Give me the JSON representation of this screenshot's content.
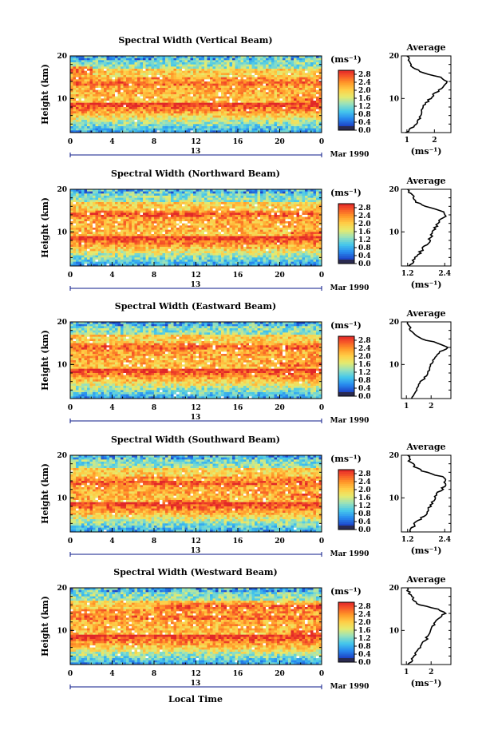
{
  "figure": {
    "xlabel": "Local Time",
    "unit_label": "(ms⁻¹)",
    "date_day": "13",
    "date_label": "Mar 1990"
  },
  "chart_data": [
    {
      "type": "heatmap",
      "title": "Spectral Width (Vertical Beam)",
      "xlabel": "Local Time",
      "ylabel": "Height (km)",
      "x_ticks": [
        "0",
        "4",
        "8",
        "12",
        "16",
        "20",
        "0"
      ],
      "xlim": [
        0,
        24
      ],
      "y_ticks": [
        "20",
        "10"
      ],
      "ylim": [
        2,
        20
      ],
      "colorbar": {
        "label": "(ms⁻¹)",
        "ticks": [
          "0.0",
          "0.4",
          "0.8",
          "1.2",
          "1.6",
          "2.0",
          "2.4",
          "2.8"
        ],
        "range": [
          0.0,
          3.0
        ]
      },
      "bands": [
        {
          "height_km": 16.5,
          "time_range": [
            0,
            2
          ],
          "value": 2.8
        },
        {
          "height_km": 13.5,
          "time_range": [
            0,
            24
          ],
          "value": 2.7
        },
        {
          "height_km": 9.5,
          "time_range": [
            21,
            24
          ],
          "value": 2.8
        },
        {
          "height_km": 8.0,
          "time_range": [
            8,
            14
          ],
          "value": 2.6
        },
        {
          "height_km": 11.5,
          "time_range": [
            8,
            18
          ],
          "value": 2.1
        }
      ],
      "profile": {
        "title": "Average",
        "xlabel": "(ms⁻¹)",
        "x_ticks": [
          "1",
          "2"
        ],
        "xlim": [
          0.8,
          2.6
        ],
        "height_km": [
          2,
          4,
          6,
          8,
          10,
          11,
          12,
          13,
          14,
          15,
          16,
          17,
          18,
          19,
          20
        ],
        "values": [
          1.0,
          1.3,
          1.5,
          1.6,
          1.85,
          2.0,
          2.2,
          2.35,
          2.45,
          2.2,
          1.6,
          1.3,
          1.15,
          1.05,
          1.0
        ]
      }
    },
    {
      "type": "heatmap",
      "title": "Spectral Width (Northward Beam)",
      "xlabel": "Local Time",
      "ylabel": "Height (km)",
      "x_ticks": [
        "0",
        "4",
        "8",
        "12",
        "16",
        "20",
        "0"
      ],
      "xlim": [
        0,
        24
      ],
      "y_ticks": [
        "20",
        "10"
      ],
      "ylim": [
        2,
        20
      ],
      "colorbar": {
        "label": "(ms⁻¹)",
        "ticks": [
          "0.0",
          "0.4",
          "0.8",
          "1.2",
          "1.6",
          "2.0",
          "2.4",
          "2.8"
        ],
        "range": [
          0.0,
          3.0
        ]
      },
      "bands": [
        {
          "height_km": 14.0,
          "time_range": [
            0,
            24
          ],
          "value": 2.8
        },
        {
          "height_km": 9.5,
          "time_range": [
            21,
            24
          ],
          "value": 2.8
        },
        {
          "height_km": 8.0,
          "time_range": [
            8,
            14
          ],
          "value": 2.7
        },
        {
          "height_km": 11.5,
          "time_range": [
            6,
            20
          ],
          "value": 2.2
        }
      ],
      "profile": {
        "title": "Average",
        "xlabel": "(ms⁻¹)",
        "x_ticks": [
          "1.2",
          "2.4"
        ],
        "xlim": [
          1.0,
          2.6
        ],
        "height_km": [
          2,
          4,
          6,
          8,
          10,
          11,
          12,
          13,
          14,
          15,
          16,
          17,
          18,
          19,
          20
        ],
        "values": [
          1.25,
          1.45,
          1.7,
          1.9,
          2.05,
          2.1,
          2.2,
          2.3,
          2.45,
          2.25,
          1.75,
          1.5,
          1.4,
          1.3,
          1.2
        ]
      }
    },
    {
      "type": "heatmap",
      "title": "Spectral Width (Eastward Beam)",
      "xlabel": "Local Time",
      "ylabel": "Height (km)",
      "x_ticks": [
        "0",
        "4",
        "8",
        "12",
        "16",
        "20",
        "0"
      ],
      "xlim": [
        0,
        24
      ],
      "y_ticks": [
        "20",
        "10"
      ],
      "ylim": [
        2,
        20
      ],
      "colorbar": {
        "label": "(ms⁻¹)",
        "ticks": [
          "0.0",
          "0.4",
          "0.8",
          "1.2",
          "1.6",
          "2.0",
          "2.4",
          "2.8"
        ],
        "range": [
          0.0,
          3.0
        ]
      },
      "bands": [
        {
          "height_km": 14.0,
          "time_range": [
            0,
            24
          ],
          "value": 2.8
        },
        {
          "height_km": 10.0,
          "time_range": [
            20,
            24
          ],
          "value": 2.7
        },
        {
          "height_km": 8.5,
          "time_range": [
            7,
            15
          ],
          "value": 2.3
        }
      ],
      "profile": {
        "title": "Average",
        "xlabel": "",
        "x_ticks": [
          "1",
          "2"
        ],
        "xlim": [
          0.8,
          2.8
        ],
        "height_km": [
          2,
          4,
          6,
          8,
          10,
          11,
          12,
          13,
          14,
          15,
          16,
          17,
          18,
          19,
          20
        ],
        "values": [
          1.2,
          1.4,
          1.6,
          1.9,
          2.0,
          2.1,
          2.2,
          2.4,
          2.65,
          2.3,
          1.6,
          1.3,
          1.2,
          1.1,
          1.05
        ]
      }
    },
    {
      "type": "heatmap",
      "title": "Spectral Width (Southward Beam)",
      "xlabel": "Local Time",
      "ylabel": "Height (km)",
      "x_ticks": [
        "0",
        "4",
        "8",
        "12",
        "16",
        "20",
        "0"
      ],
      "xlim": [
        0,
        24
      ],
      "y_ticks": [
        "20",
        "10"
      ],
      "ylim": [
        2,
        20
      ],
      "colorbar": {
        "label": "(ms⁻¹)",
        "ticks": [
          "0.0",
          "0.4",
          "0.8",
          "1.2",
          "1.6",
          "2.0",
          "2.4",
          "2.8"
        ],
        "range": [
          0.0,
          3.0
        ]
      },
      "bands": [
        {
          "height_km": 13.5,
          "time_range": [
            0,
            24
          ],
          "value": 2.8
        },
        {
          "height_km": 10.5,
          "time_range": [
            21,
            24
          ],
          "value": 2.8
        },
        {
          "height_km": 9.0,
          "time_range": [
            8,
            15
          ],
          "value": 2.7
        }
      ],
      "profile": {
        "title": "Average",
        "xlabel": "(ms⁻¹)",
        "x_ticks": [
          "1.2",
          "2.4"
        ],
        "xlim": [
          1.0,
          2.6
        ],
        "height_km": [
          2,
          4,
          6,
          8,
          10,
          11,
          12,
          13,
          14,
          15,
          16,
          17,
          18,
          19,
          20
        ],
        "values": [
          1.25,
          1.45,
          1.75,
          1.95,
          2.1,
          2.15,
          2.3,
          2.4,
          2.45,
          2.3,
          1.8,
          1.5,
          1.35,
          1.25,
          1.2
        ]
      }
    },
    {
      "type": "heatmap",
      "title": "Spectral Width (Westward Beam)",
      "xlabel": "Local Time",
      "ylabel": "Height (km)",
      "x_ticks": [
        "0",
        "4",
        "8",
        "12",
        "16",
        "20",
        "0"
      ],
      "xlim": [
        0,
        24
      ],
      "y_ticks": [
        "20",
        "10"
      ],
      "ylim": [
        2,
        20
      ],
      "colorbar": {
        "label": "(ms⁻¹)",
        "ticks": [
          "0.0",
          "0.4",
          "0.8",
          "1.2",
          "1.6",
          "2.0",
          "2.4",
          "2.8"
        ],
        "range": [
          0.0,
          3.0
        ]
      },
      "bands": [
        {
          "height_km": 15.5,
          "time_range": [
            8,
            24
          ],
          "value": 2.8
        },
        {
          "height_km": 13.0,
          "time_range": [
            0,
            24
          ],
          "value": 2.7
        },
        {
          "height_km": 9.5,
          "time_range": [
            21,
            24
          ],
          "value": 2.8
        },
        {
          "height_km": 8.5,
          "time_range": [
            8,
            14
          ],
          "value": 2.6
        }
      ],
      "profile": {
        "title": "Average",
        "xlabel": "(ms⁻¹)",
        "x_ticks": [
          "1",
          "2"
        ],
        "xlim": [
          0.8,
          2.8
        ],
        "height_km": [
          2,
          4,
          6,
          8,
          10,
          11,
          12,
          13,
          14,
          15,
          16,
          17,
          18,
          19,
          20
        ],
        "values": [
          1.1,
          1.3,
          1.55,
          1.8,
          1.95,
          2.05,
          2.2,
          2.35,
          2.55,
          2.3,
          1.5,
          1.3,
          1.2,
          1.1,
          1.05
        ]
      }
    }
  ]
}
